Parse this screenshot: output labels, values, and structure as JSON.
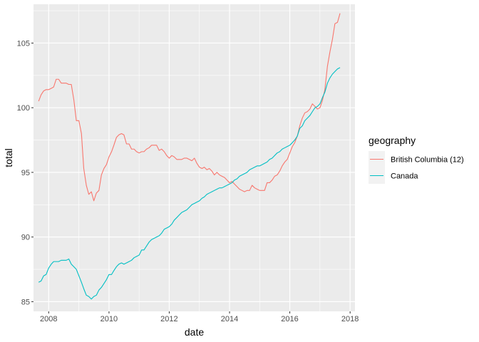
{
  "chart_data": {
    "type": "line",
    "title": "",
    "xlabel": "date",
    "ylabel": "total",
    "xlim": [
      "2007-07-01",
      "2018-03-01"
    ],
    "ylim": [
      84.25,
      108.0
    ],
    "x_ticks": [
      "2008",
      "2010",
      "2012",
      "2014",
      "2016",
      "2018"
    ],
    "y_ticks": [
      85,
      90,
      95,
      100,
      105
    ],
    "grid": true,
    "legend": {
      "title": "geography",
      "placement": "right"
    },
    "series": [
      {
        "name": "British Columbia (12)",
        "color": "#f8766d",
        "points": [
          [
            "2007-09-01",
            100.5
          ],
          [
            "2007-10-01",
            101.0
          ],
          [
            "2007-11-01",
            101.3
          ],
          [
            "2007-12-01",
            101.4
          ],
          [
            "2008-01-01",
            101.4
          ],
          [
            "2008-02-01",
            101.5
          ],
          [
            "2008-03-01",
            101.6
          ],
          [
            "2008-04-01",
            102.2
          ],
          [
            "2008-05-01",
            102.2
          ],
          [
            "2008-06-01",
            101.9
          ],
          [
            "2008-07-01",
            101.9
          ],
          [
            "2008-08-01",
            101.9
          ],
          [
            "2008-09-01",
            101.8
          ],
          [
            "2008-10-01",
            101.8
          ],
          [
            "2008-11-01",
            100.6
          ],
          [
            "2008-12-01",
            99.0
          ],
          [
            "2009-01-01",
            99.0
          ],
          [
            "2009-02-01",
            98.0
          ],
          [
            "2009-03-01",
            95.3
          ],
          [
            "2009-04-01",
            94.0
          ],
          [
            "2009-05-01",
            93.3
          ],
          [
            "2009-06-01",
            93.5
          ],
          [
            "2009-07-01",
            92.8
          ],
          [
            "2009-08-01",
            93.4
          ],
          [
            "2009-09-01",
            93.6
          ],
          [
            "2009-10-01",
            94.8
          ],
          [
            "2009-11-01",
            95.3
          ],
          [
            "2009-12-01",
            95.6
          ],
          [
            "2010-01-01",
            96.2
          ],
          [
            "2010-02-01",
            96.6
          ],
          [
            "2010-03-01",
            97.1
          ],
          [
            "2010-04-01",
            97.7
          ],
          [
            "2010-05-01",
            97.9
          ],
          [
            "2010-06-01",
            98.0
          ],
          [
            "2010-07-01",
            97.9
          ],
          [
            "2010-08-01",
            97.2
          ],
          [
            "2010-09-01",
            97.2
          ],
          [
            "2010-10-01",
            96.8
          ],
          [
            "2010-11-01",
            96.8
          ],
          [
            "2010-12-01",
            96.6
          ],
          [
            "2011-01-01",
            96.5
          ],
          [
            "2011-02-01",
            96.6
          ],
          [
            "2011-03-01",
            96.6
          ],
          [
            "2011-04-01",
            96.8
          ],
          [
            "2011-05-01",
            96.9
          ],
          [
            "2011-06-01",
            97.1
          ],
          [
            "2011-07-01",
            97.1
          ],
          [
            "2011-08-01",
            97.1
          ],
          [
            "2011-09-01",
            96.7
          ],
          [
            "2011-10-01",
            96.8
          ],
          [
            "2011-11-01",
            96.6
          ],
          [
            "2011-12-01",
            96.3
          ],
          [
            "2012-01-01",
            96.1
          ],
          [
            "2012-02-01",
            96.3
          ],
          [
            "2012-03-01",
            96.2
          ],
          [
            "2012-04-01",
            96.0
          ],
          [
            "2012-05-01",
            96.0
          ],
          [
            "2012-06-01",
            96.0
          ],
          [
            "2012-07-01",
            96.1
          ],
          [
            "2012-08-01",
            96.1
          ],
          [
            "2012-09-01",
            96.0
          ],
          [
            "2012-10-01",
            95.9
          ],
          [
            "2012-11-01",
            96.1
          ],
          [
            "2012-12-01",
            95.7
          ],
          [
            "2013-01-01",
            95.4
          ],
          [
            "2013-02-01",
            95.3
          ],
          [
            "2013-03-01",
            95.4
          ],
          [
            "2013-04-01",
            95.2
          ],
          [
            "2013-05-01",
            95.3
          ],
          [
            "2013-06-01",
            95.1
          ],
          [
            "2013-07-01",
            94.8
          ],
          [
            "2013-08-01",
            95.0
          ],
          [
            "2013-09-01",
            94.8
          ],
          [
            "2013-10-01",
            94.7
          ],
          [
            "2013-11-01",
            94.6
          ],
          [
            "2013-12-01",
            94.4
          ],
          [
            "2014-01-01",
            94.2
          ],
          [
            "2014-02-01",
            94.3
          ],
          [
            "2014-03-01",
            94.1
          ],
          [
            "2014-04-01",
            93.9
          ],
          [
            "2014-05-01",
            93.7
          ],
          [
            "2014-06-01",
            93.6
          ],
          [
            "2014-07-01",
            93.5
          ],
          [
            "2014-08-01",
            93.6
          ],
          [
            "2014-09-01",
            93.6
          ],
          [
            "2014-10-01",
            94.0
          ],
          [
            "2014-11-01",
            93.8
          ],
          [
            "2014-12-01",
            93.7
          ],
          [
            "2015-01-01",
            93.6
          ],
          [
            "2015-02-01",
            93.6
          ],
          [
            "2015-03-01",
            93.6
          ],
          [
            "2015-04-01",
            94.2
          ],
          [
            "2015-05-01",
            94.2
          ],
          [
            "2015-06-01",
            94.4
          ],
          [
            "2015-07-01",
            94.7
          ],
          [
            "2015-08-01",
            94.8
          ],
          [
            "2015-09-01",
            95.1
          ],
          [
            "2015-10-01",
            95.5
          ],
          [
            "2015-11-01",
            95.8
          ],
          [
            "2015-12-01",
            96.0
          ],
          [
            "2016-01-01",
            96.5
          ],
          [
            "2016-02-01",
            97.0
          ],
          [
            "2016-03-01",
            97.3
          ],
          [
            "2016-04-01",
            97.8
          ],
          [
            "2016-05-01",
            98.6
          ],
          [
            "2016-06-01",
            99.2
          ],
          [
            "2016-07-01",
            99.6
          ],
          [
            "2016-08-01",
            99.7
          ],
          [
            "2016-09-01",
            99.9
          ],
          [
            "2016-10-01",
            100.3
          ],
          [
            "2016-11-01",
            100.1
          ],
          [
            "2016-12-01",
            99.9
          ],
          [
            "2017-01-01",
            100.0
          ],
          [
            "2017-02-01",
            100.6
          ],
          [
            "2017-03-01",
            101.4
          ],
          [
            "2017-04-01",
            103.2
          ],
          [
            "2017-05-01",
            104.3
          ],
          [
            "2017-06-01",
            105.3
          ],
          [
            "2017-07-01",
            106.5
          ],
          [
            "2017-08-01",
            106.6
          ],
          [
            "2017-09-01",
            107.3
          ]
        ]
      },
      {
        "name": "Canada",
        "color": "#00bfc4",
        "points": [
          [
            "2007-09-01",
            86.5
          ],
          [
            "2007-10-01",
            86.6
          ],
          [
            "2007-11-01",
            87.0
          ],
          [
            "2007-12-01",
            87.1
          ],
          [
            "2008-01-01",
            87.6
          ],
          [
            "2008-02-01",
            87.9
          ],
          [
            "2008-03-01",
            88.1
          ],
          [
            "2008-04-01",
            88.1
          ],
          [
            "2008-05-01",
            88.1
          ],
          [
            "2008-06-01",
            88.2
          ],
          [
            "2008-07-01",
            88.2
          ],
          [
            "2008-08-01",
            88.2
          ],
          [
            "2008-09-01",
            88.3
          ],
          [
            "2008-10-01",
            87.9
          ],
          [
            "2008-11-01",
            87.7
          ],
          [
            "2008-12-01",
            87.5
          ],
          [
            "2009-01-01",
            87.0
          ],
          [
            "2009-02-01",
            86.5
          ],
          [
            "2009-03-01",
            86.0
          ],
          [
            "2009-04-01",
            85.5
          ],
          [
            "2009-05-01",
            85.4
          ],
          [
            "2009-06-01",
            85.2
          ],
          [
            "2009-07-01",
            85.4
          ],
          [
            "2009-08-01",
            85.5
          ],
          [
            "2009-09-01",
            85.9
          ],
          [
            "2009-10-01",
            86.1
          ],
          [
            "2009-11-01",
            86.4
          ],
          [
            "2009-12-01",
            86.7
          ],
          [
            "2010-01-01",
            87.1
          ],
          [
            "2010-02-01",
            87.1
          ],
          [
            "2010-03-01",
            87.4
          ],
          [
            "2010-04-01",
            87.7
          ],
          [
            "2010-05-01",
            87.9
          ],
          [
            "2010-06-01",
            88.0
          ],
          [
            "2010-07-01",
            87.9
          ],
          [
            "2010-08-01",
            88.0
          ],
          [
            "2010-09-01",
            88.1
          ],
          [
            "2010-10-01",
            88.2
          ],
          [
            "2010-11-01",
            88.4
          ],
          [
            "2010-12-01",
            88.5
          ],
          [
            "2011-01-01",
            88.6
          ],
          [
            "2011-02-01",
            89.0
          ],
          [
            "2011-03-01",
            89.0
          ],
          [
            "2011-04-01",
            89.3
          ],
          [
            "2011-05-01",
            89.6
          ],
          [
            "2011-06-01",
            89.8
          ],
          [
            "2011-07-01",
            89.9
          ],
          [
            "2011-08-01",
            90.0
          ],
          [
            "2011-09-01",
            90.1
          ],
          [
            "2011-10-01",
            90.3
          ],
          [
            "2011-11-01",
            90.6
          ],
          [
            "2011-12-01",
            90.7
          ],
          [
            "2012-01-01",
            90.8
          ],
          [
            "2012-02-01",
            91.0
          ],
          [
            "2012-03-01",
            91.3
          ],
          [
            "2012-04-01",
            91.5
          ],
          [
            "2012-05-01",
            91.7
          ],
          [
            "2012-06-01",
            91.9
          ],
          [
            "2012-07-01",
            92.0
          ],
          [
            "2012-08-01",
            92.1
          ],
          [
            "2012-09-01",
            92.3
          ],
          [
            "2012-10-01",
            92.5
          ],
          [
            "2012-11-01",
            92.6
          ],
          [
            "2012-12-01",
            92.7
          ],
          [
            "2013-01-01",
            92.8
          ],
          [
            "2013-02-01",
            93.0
          ],
          [
            "2013-03-01",
            93.1
          ],
          [
            "2013-04-01",
            93.3
          ],
          [
            "2013-05-01",
            93.4
          ],
          [
            "2013-06-01",
            93.5
          ],
          [
            "2013-07-01",
            93.6
          ],
          [
            "2013-08-01",
            93.7
          ],
          [
            "2013-09-01",
            93.8
          ],
          [
            "2013-10-01",
            93.8
          ],
          [
            "2013-11-01",
            93.9
          ],
          [
            "2013-12-01",
            94.0
          ],
          [
            "2014-01-01",
            94.1
          ],
          [
            "2014-02-01",
            94.2
          ],
          [
            "2014-03-01",
            94.4
          ],
          [
            "2014-04-01",
            94.5
          ],
          [
            "2014-05-01",
            94.7
          ],
          [
            "2014-06-01",
            94.8
          ],
          [
            "2014-07-01",
            94.9
          ],
          [
            "2014-08-01",
            95.0
          ],
          [
            "2014-09-01",
            95.2
          ],
          [
            "2014-10-01",
            95.3
          ],
          [
            "2014-11-01",
            95.4
          ],
          [
            "2014-12-01",
            95.5
          ],
          [
            "2015-01-01",
            95.5
          ],
          [
            "2015-02-01",
            95.6
          ],
          [
            "2015-03-01",
            95.7
          ],
          [
            "2015-04-01",
            95.8
          ],
          [
            "2015-05-01",
            96.0
          ],
          [
            "2015-06-01",
            96.1
          ],
          [
            "2015-07-01",
            96.3
          ],
          [
            "2015-08-01",
            96.5
          ],
          [
            "2015-09-01",
            96.6
          ],
          [
            "2015-10-01",
            96.8
          ],
          [
            "2015-11-01",
            96.9
          ],
          [
            "2015-12-01",
            97.0
          ],
          [
            "2016-01-01",
            97.1
          ],
          [
            "2016-02-01",
            97.3
          ],
          [
            "2016-03-01",
            97.5
          ],
          [
            "2016-04-01",
            97.8
          ],
          [
            "2016-05-01",
            98.4
          ],
          [
            "2016-06-01",
            98.6
          ],
          [
            "2016-07-01",
            99.0
          ],
          [
            "2016-08-01",
            99.2
          ],
          [
            "2016-09-01",
            99.4
          ],
          [
            "2016-10-01",
            99.7
          ],
          [
            "2016-11-01",
            100.0
          ],
          [
            "2016-12-01",
            100.1
          ],
          [
            "2017-01-01",
            100.3
          ],
          [
            "2017-02-01",
            100.8
          ],
          [
            "2017-03-01",
            101.2
          ],
          [
            "2017-04-01",
            101.9
          ],
          [
            "2017-05-01",
            102.3
          ],
          [
            "2017-06-01",
            102.6
          ],
          [
            "2017-07-01",
            102.8
          ],
          [
            "2017-08-01",
            103.0
          ],
          [
            "2017-09-01",
            103.1
          ]
        ]
      }
    ]
  }
}
